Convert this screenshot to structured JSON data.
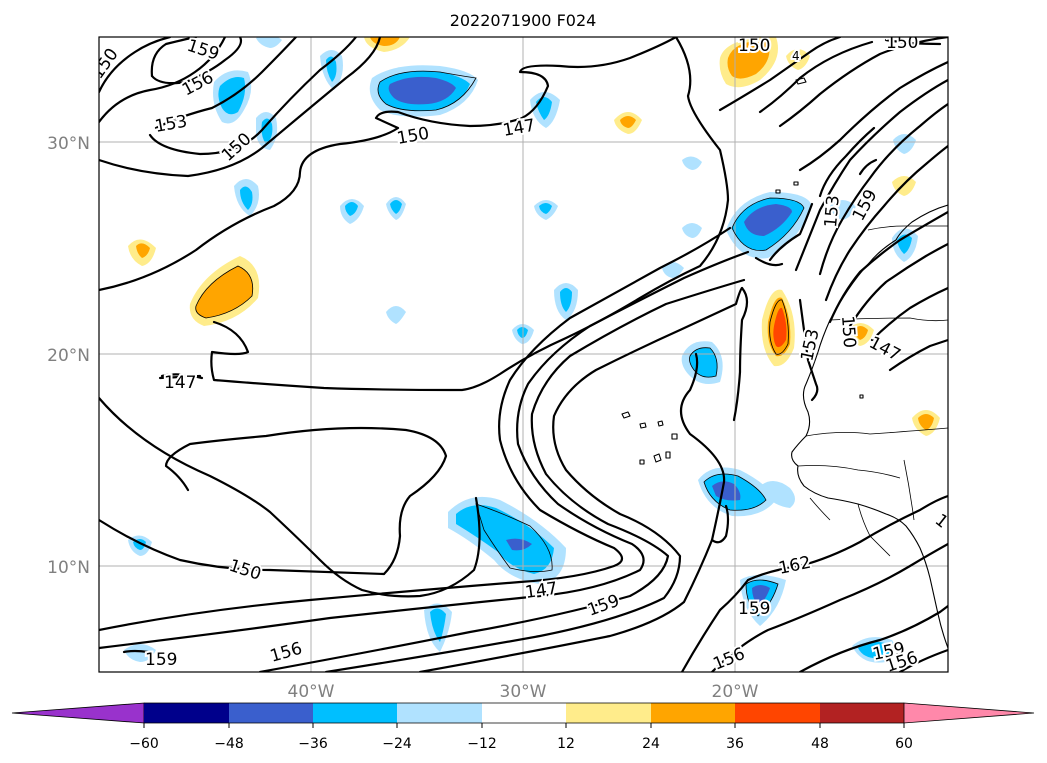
{
  "title": "2022071900 F024",
  "map": {
    "lat_labels": [
      "30°N",
      "20°N",
      "10°N"
    ],
    "lon_labels": [
      "40°W",
      "30°W",
      "20°W"
    ],
    "grid": true
  },
  "contour_labels": [
    "150",
    "159",
    "156",
    "153",
    "150",
    "150",
    "147",
    "150",
    "150",
    "4",
    "153",
    "159",
    "150",
    "153",
    "147",
    "147",
    "150",
    "147",
    "159",
    "162",
    "159",
    "156",
    "159",
    "156",
    "159",
    "156",
    "1"
  ],
  "colorbar": {
    "ticks": [
      "−60",
      "−48",
      "−36",
      "−24",
      "−12",
      "12",
      "24",
      "36",
      "48",
      "60"
    ],
    "colors": [
      "#9932cc",
      "#00008b",
      "#3a5fcd",
      "#00bfff",
      "#b0e2ff",
      "#ffffff",
      "#ffec8b",
      "#ffa500",
      "#ff4500",
      "#b22222",
      "#ff88aa"
    ]
  }
}
